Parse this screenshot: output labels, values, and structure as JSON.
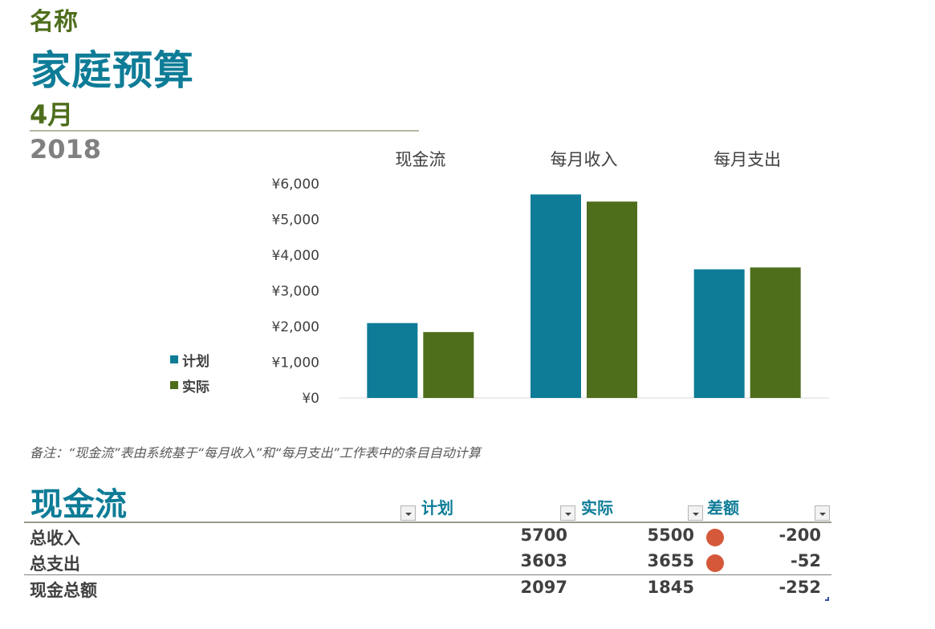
{
  "header": {
    "name_label": "名称",
    "title": "家庭预算",
    "month": "4月",
    "year": "2018"
  },
  "chart_data": {
    "type": "bar",
    "categories": [
      "现金流",
      "每月收入",
      "每月支出"
    ],
    "series": [
      {
        "name": "计划",
        "values": [
          2097,
          5700,
          3603
        ],
        "color": "#0e7c97"
      },
      {
        "name": "实际",
        "values": [
          1845,
          5500,
          3655
        ],
        "color": "#4e6e1c"
      }
    ],
    "yticks": [
      "¥0",
      "¥1,000",
      "¥2,000",
      "¥3,000",
      "¥4,000",
      "¥5,000",
      "¥6,000"
    ],
    "ylim": [
      0,
      6000
    ],
    "legend": "left",
    "grid": false
  },
  "note": "备注：“现金流”表由系统基于“每月收入”和“每月支出”工作表中的条目自动计算",
  "table": {
    "title": "现金流",
    "columns": [
      "计划",
      "实际",
      "差额"
    ],
    "rows": [
      {
        "label": "总收入",
        "planned": "5700",
        "actual": "5500",
        "diff": "-200",
        "indicator": "red-dot"
      },
      {
        "label": "总支出",
        "planned": "3603",
        "actual": "3655",
        "diff": "-52",
        "indicator": "red-dot"
      },
      {
        "label": "现金总额",
        "planned": "2097",
        "actual": "1845",
        "diff": "-252"
      }
    ]
  }
}
